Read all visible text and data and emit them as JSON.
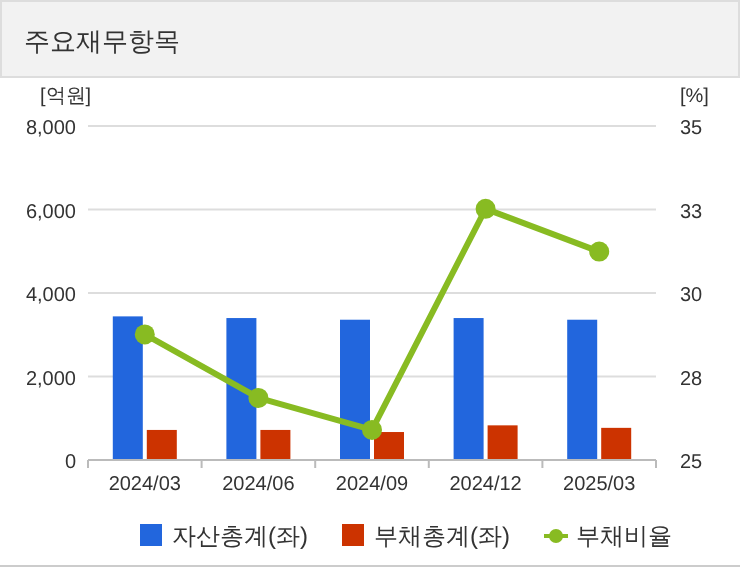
{
  "chart_data": {
    "type": "bar",
    "title": "주요재무항목",
    "ylabel": "[억원]",
    "y2label": "[%]",
    "categories": [
      "2024/03",
      "2024/06",
      "2024/09",
      "2024/12",
      "2025/03"
    ],
    "series": [
      {
        "name": "자산총계(좌)",
        "color": "#2266dd",
        "values": [
          3440,
          3400,
          3360,
          3400,
          3360
        ]
      },
      {
        "name": "부채총계(좌)",
        "color": "#cc3300",
        "values": [
          720,
          720,
          670,
          830,
          770
        ]
      },
      {
        "name": "부채비율",
        "type": "line",
        "axis": "y2",
        "color": "#88bb22",
        "marker": "circle",
        "values": [
          28.76,
          26.86,
          25.9,
          32.52,
          31.24
        ]
      }
    ],
    "ylim": [
      0,
      8000
    ],
    "yticks": [
      {
        "value": 0,
        "label": "0"
      },
      {
        "value": 2000,
        "label": "2,000"
      },
      {
        "value": 4000,
        "label": "4,000"
      },
      {
        "value": 6000,
        "label": "6,000"
      },
      {
        "value": 8000,
        "label": "8,000"
      }
    ],
    "y2lim": [
      25,
      35
    ],
    "y2ticks": [
      25,
      {
        "value": 27.5,
        "label": "28"
      },
      30,
      {
        "value": 32.5,
        "label": "33"
      },
      35
    ],
    "grid": "y",
    "legend": "bottom"
  }
}
